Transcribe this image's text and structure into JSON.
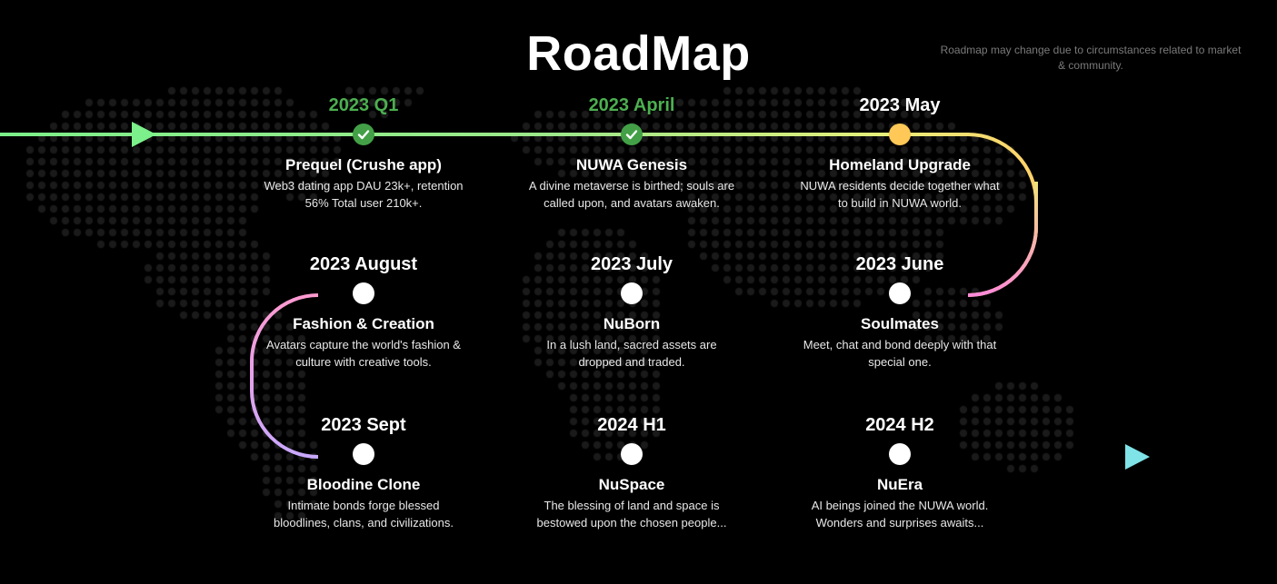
{
  "header": {
    "title": "RoadMap",
    "disclaimer": "Roadmap may change due to circumstances related to market & community."
  },
  "colors": {
    "background": "#000000",
    "done": "#4caf50",
    "current": "#ffc857",
    "path_start": "#7cf08a",
    "path_mid": "#ff8ad8",
    "path_end": "#7fe3e8"
  },
  "milestones": [
    {
      "date": "2023 Q1",
      "status": "done",
      "name": "Prequel (Crushe app)",
      "desc": "Web3 dating app DAU 23k+, retention 56% Total user 210k+."
    },
    {
      "date": "2023 April",
      "status": "done",
      "name": "NUWA Genesis",
      "desc": "A divine metaverse is birthed; souls are called upon, and avatars awaken."
    },
    {
      "date": "2023 May",
      "status": "current",
      "name": "Homeland Upgrade",
      "desc": "NUWA residents decide together what to build in NUWA world."
    },
    {
      "date": "2023 August",
      "status": "upcoming",
      "name": "Fashion & Creation",
      "desc": "Avatars capture the world's fashion & culture with creative tools."
    },
    {
      "date": "2023 July",
      "status": "upcoming",
      "name": "NuBorn",
      "desc": "In a lush land, sacred assets are dropped and traded."
    },
    {
      "date": "2023 June",
      "status": "upcoming",
      "name": "Soulmates",
      "desc": "Meet, chat and bond deeply with that special one."
    },
    {
      "date": "2023 Sept",
      "status": "upcoming",
      "name": "Bloodine Clone",
      "desc": "Intimate bonds forge blessed bloodlines, clans, and civilizations."
    },
    {
      "date": "2024 H1",
      "status": "upcoming",
      "name": "NuSpace",
      "desc": "The blessing of land and space is bestowed upon the chosen people..."
    },
    {
      "date": "2024 H2",
      "status": "upcoming",
      "name": "NuEra",
      "desc": "AI beings joined the NUWA world. Wonders and surprises awaits..."
    }
  ]
}
